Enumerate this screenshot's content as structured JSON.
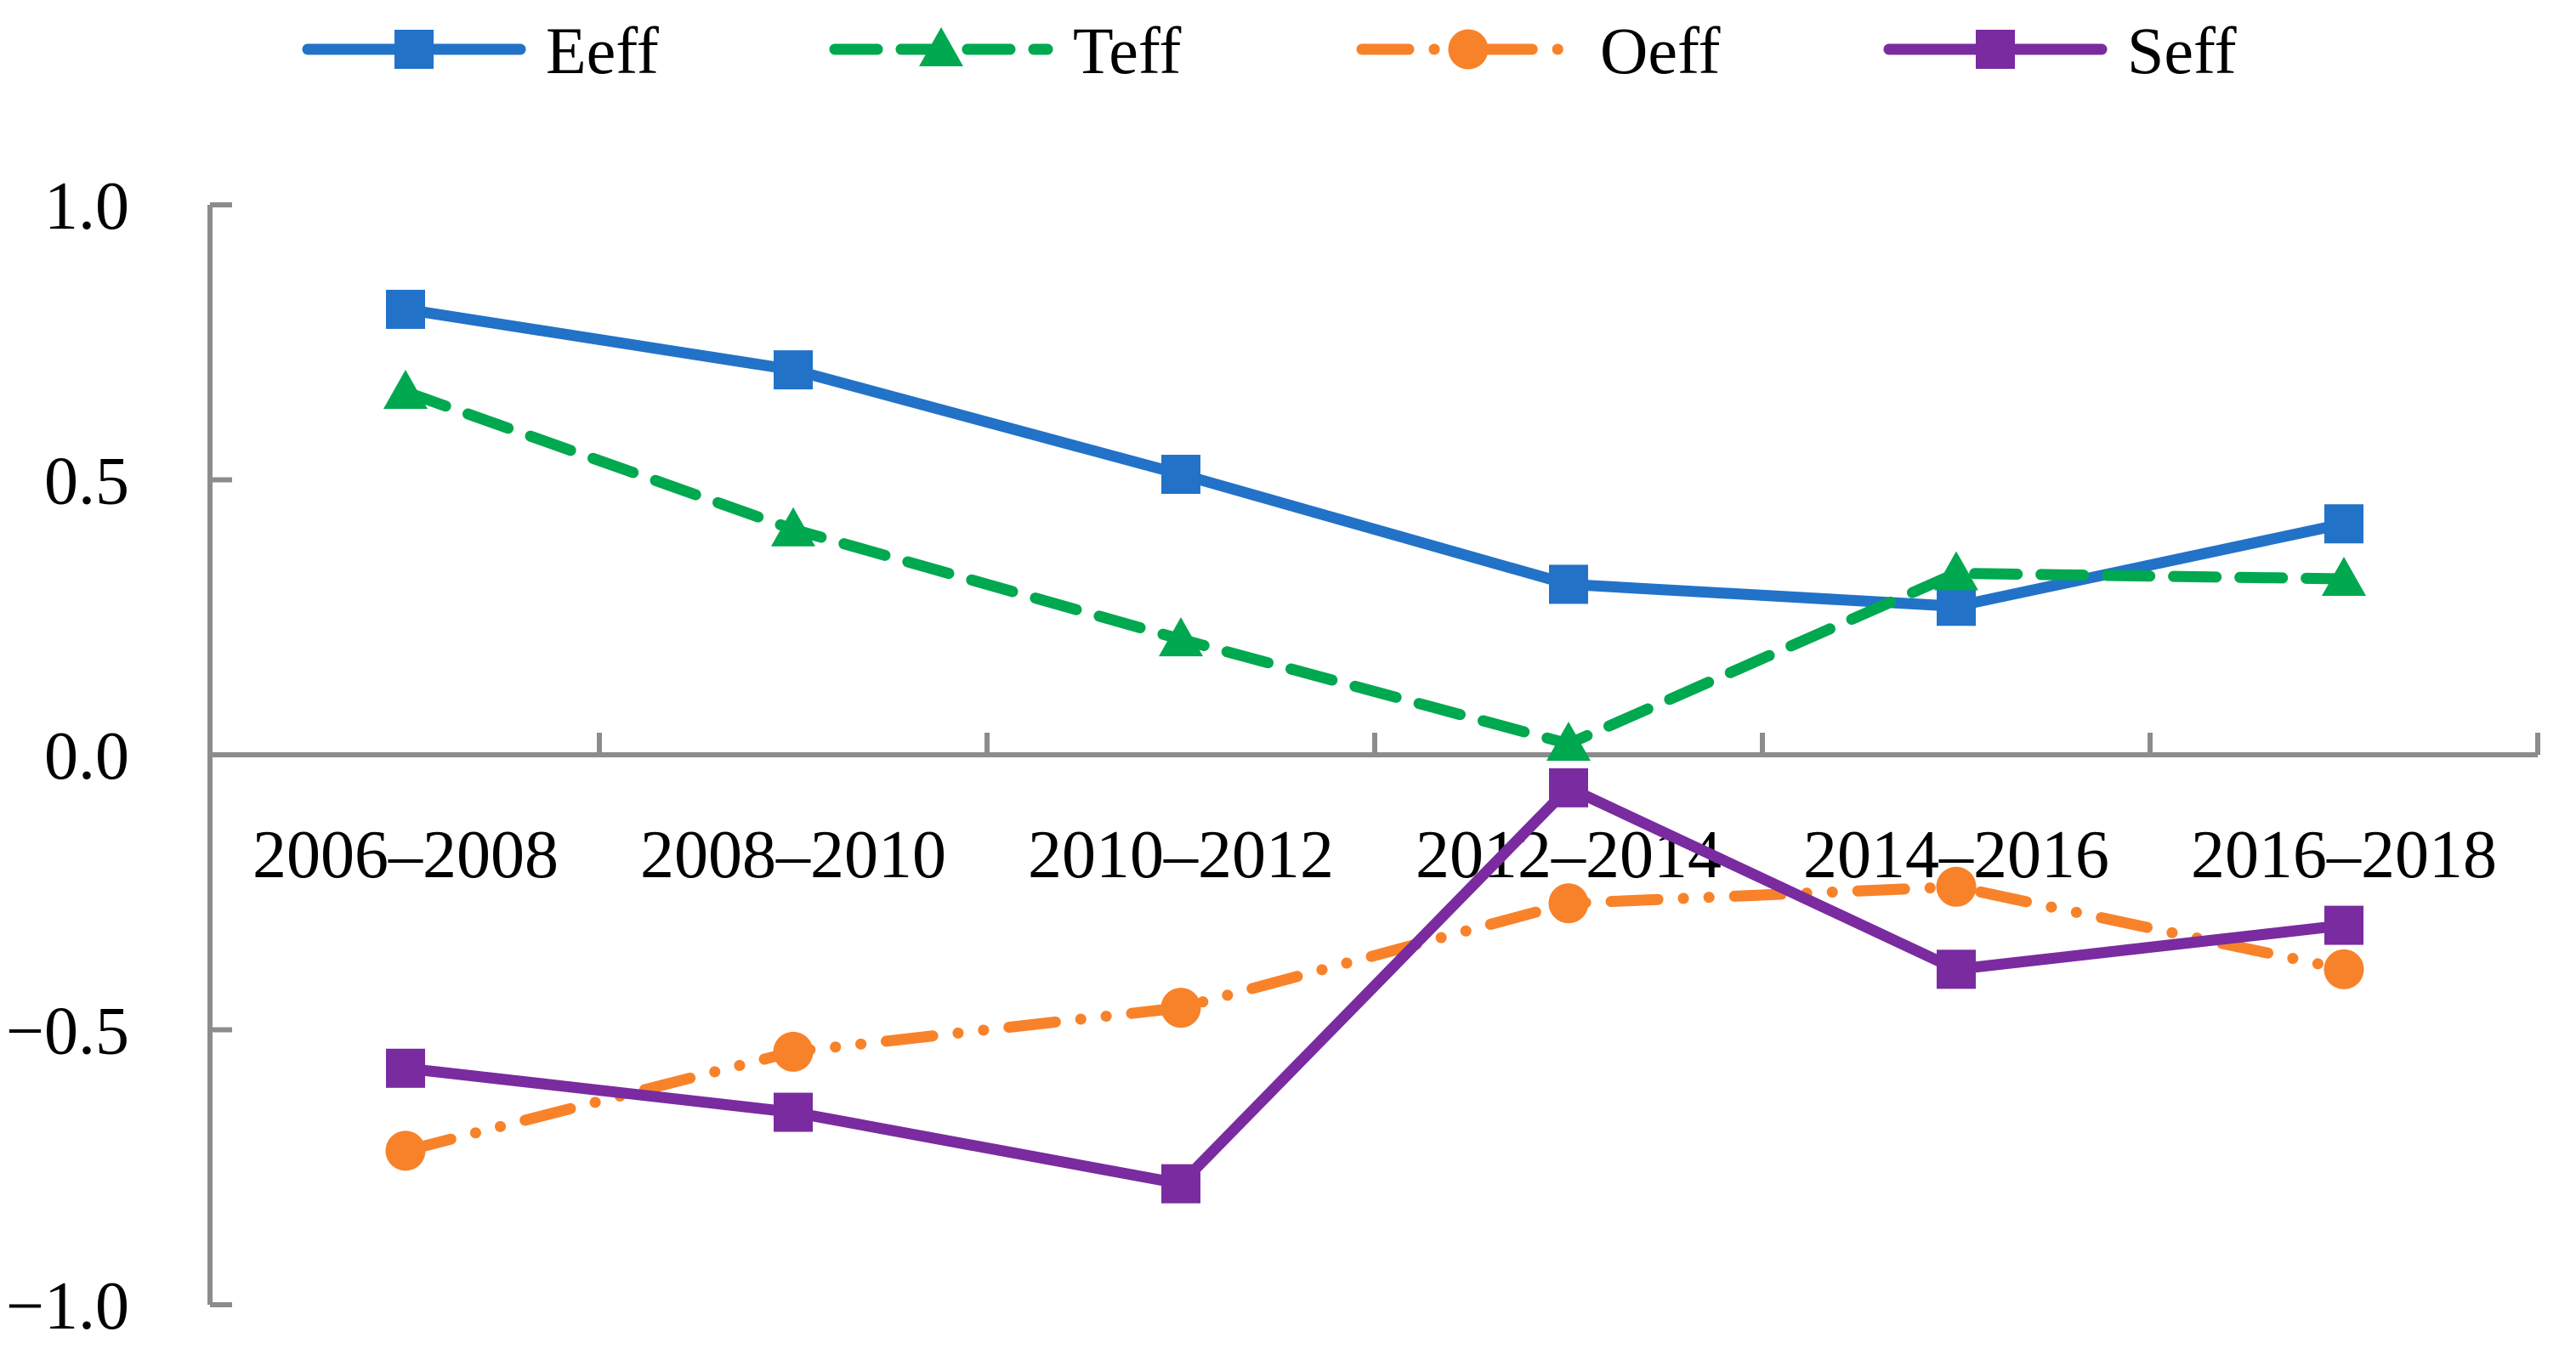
{
  "figure": {
    "background": "#ffffff",
    "axis_color": "#8C8C8C",
    "text_color": "#000000"
  },
  "legend": {
    "position": "top",
    "items": [
      {
        "label": "Eeff",
        "color": "#2272C8",
        "marker": "square",
        "line_style": "solid"
      },
      {
        "label": "Teff",
        "color": "#00A84F",
        "marker": "triangle",
        "line_style": "dashed"
      },
      {
        "label": "Oeff",
        "color": "#F8822A",
        "marker": "circle",
        "line_style": "dash-dot-dot"
      },
      {
        "label": "Seff",
        "color": "#7A2BA0",
        "marker": "square",
        "line_style": "solid"
      }
    ]
  },
  "chart_data": {
    "type": "line",
    "title": "",
    "xlabel": "",
    "ylabel": "",
    "categories": [
      "2006–2008",
      "2008–2010",
      "2010–2012",
      "2012–2014",
      "2014–2016",
      "2016–2018"
    ],
    "series": [
      {
        "name": "Eeff",
        "color": "#2272C8",
        "marker": "square",
        "line_style": "solid",
        "values": [
          0.81,
          0.7,
          0.51,
          0.31,
          0.27,
          0.42
        ]
      },
      {
        "name": "Teff",
        "color": "#00A84F",
        "marker": "triangle",
        "line_style": "dashed",
        "values": [
          0.66,
          0.41,
          0.21,
          0.02,
          0.33,
          0.32
        ]
      },
      {
        "name": "Oeff",
        "color": "#F8822A",
        "marker": "circle",
        "line_style": "dash-dot-dot",
        "values": [
          -0.72,
          -0.54,
          -0.46,
          -0.27,
          -0.24,
          -0.39
        ]
      },
      {
        "name": "Seff",
        "color": "#7A2BA0",
        "marker": "square",
        "line_style": "solid",
        "values": [
          -0.57,
          -0.65,
          -0.78,
          -0.06,
          -0.39,
          -0.31
        ]
      }
    ],
    "ylim": [
      -1.0,
      1.0
    ],
    "yticks": [
      1.0,
      0.5,
      0.0,
      -0.5,
      -1.0
    ],
    "ytick_labels": [
      "1.0",
      "0.5",
      "0.0",
      "−0.5",
      "−1.0"
    ],
    "grid": false,
    "legend_position": "top"
  }
}
